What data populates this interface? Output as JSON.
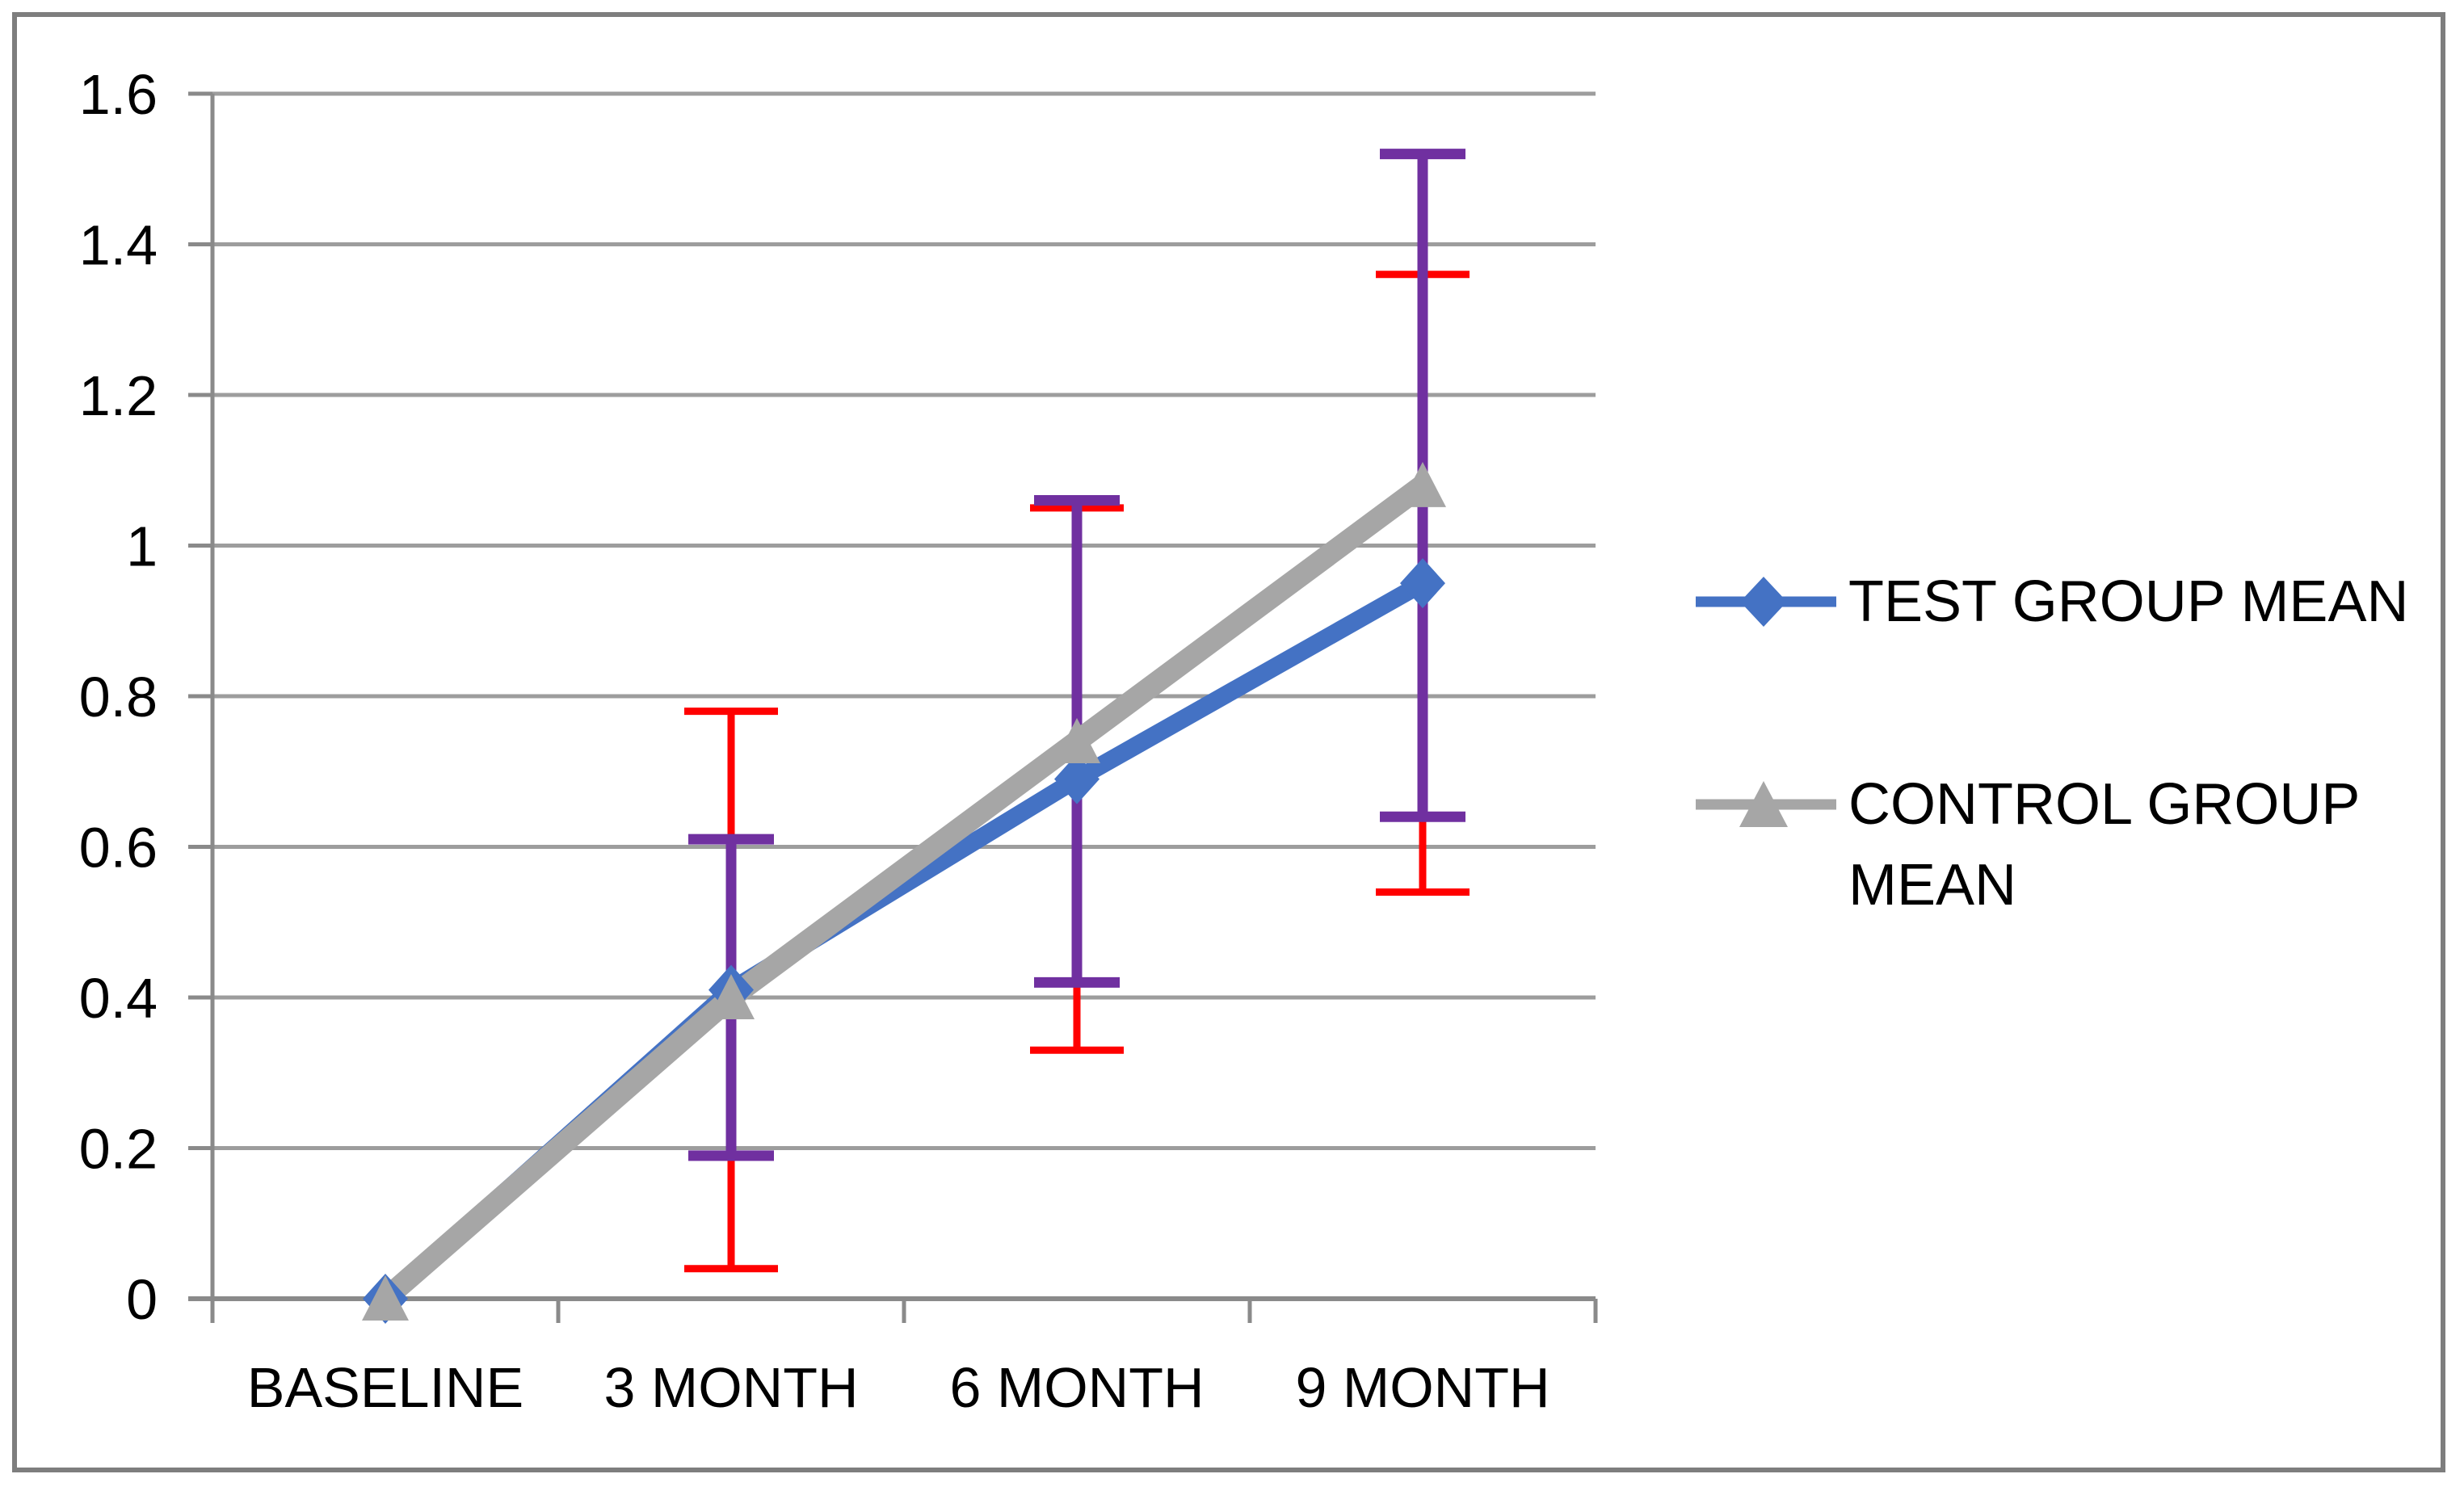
{
  "chart_data": {
    "type": "line",
    "title": "",
    "xlabel": "",
    "ylabel": "",
    "categories": [
      "BASELINE",
      "3 MONTH",
      "6 MONTH",
      "9 MONTH"
    ],
    "y_axis": {
      "min": 0,
      "max": 1.6,
      "step": 0.2,
      "tick_labels": [
        "0",
        "0.2",
        "0.4",
        "0.6",
        "0.8",
        "1",
        "1.2",
        "1.4",
        "1.6"
      ]
    },
    "grid": true,
    "legend_position": "right",
    "series": [
      {
        "name": "TEST GROUP MEAN",
        "values": [
          0,
          0.41,
          0.69,
          0.95
        ],
        "color": "#4472C4",
        "marker": "diamond",
        "error_bars": {
          "color": "#FF0000",
          "ranges": [
            null,
            [
              0.04,
              0.78
            ],
            [
              0.33,
              1.05
            ],
            [
              0.54,
              1.36
            ]
          ]
        }
      },
      {
        "name": "CONTROL GROUP MEAN",
        "values": [
          0,
          0.4,
          0.74,
          1.08
        ],
        "color": "#A6A6A6",
        "marker": "triangle",
        "error_bars": {
          "color": "#7030A0",
          "ranges": [
            null,
            [
              0.19,
              0.61
            ],
            [
              0.42,
              1.06
            ],
            [
              0.64,
              1.52
            ]
          ]
        }
      }
    ]
  },
  "colors": {
    "grid": "#9D9D9D",
    "axis": "#8A8A8A",
    "frame_border": "#7E7E7E",
    "text": "#000000",
    "background": "#FFFFFF"
  }
}
